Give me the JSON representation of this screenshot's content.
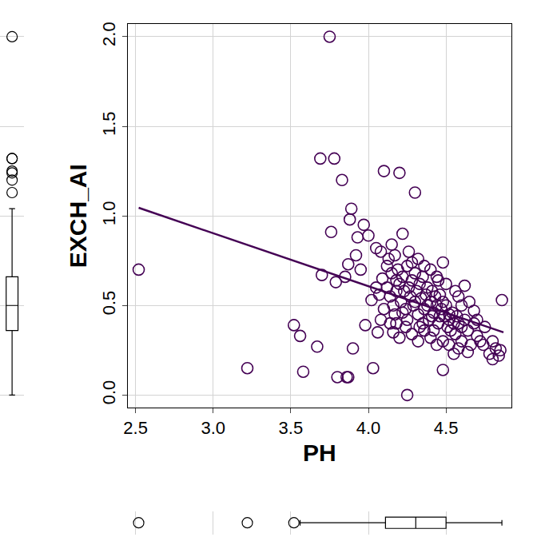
{
  "chart_data": {
    "type": "scatter",
    "x_label": "PH",
    "y_label": "EXCH_AI",
    "xlim": [
      2.45,
      4.92
    ],
    "ylim": [
      -0.07,
      2.07
    ],
    "xticks": [
      {
        "value": 2.5,
        "label": "2.5"
      },
      {
        "value": 3,
        "label": "3.0"
      },
      {
        "value": 3.5,
        "label": "3.5"
      },
      {
        "value": 4,
        "label": "4.0"
      },
      {
        "value": 4.5,
        "label": "4.5"
      }
    ],
    "yticks": [
      {
        "value": 0,
        "label": "0.0"
      },
      {
        "value": 0.5,
        "label": "0.5"
      },
      {
        "value": 1,
        "label": "1.0"
      },
      {
        "value": 1.5,
        "label": "1.5"
      },
      {
        "value": 2,
        "label": "2.0"
      }
    ],
    "grid": true,
    "series": [
      {
        "type": "scatter",
        "marker": "circle-open",
        "color": "#440154",
        "x": [
          2.52,
          3.22,
          3.52,
          3.56,
          3.58,
          3.67,
          3.69,
          3.7,
          3.75,
          3.76,
          3.78,
          3.79,
          3.8,
          3.83,
          3.85,
          3.86,
          3.87,
          3.87,
          3.88,
          3.89,
          3.9,
          3.92,
          3.93,
          3.95,
          3.97,
          3.98,
          4.0,
          4.02,
          4.03,
          4.05,
          4.07,
          4.08,
          4.1,
          4.12,
          4.15,
          4.18,
          4.2,
          4.22,
          4.25,
          4.3,
          4.26,
          4.32,
          4.4,
          4.45,
          4.48,
          4.48,
          4.55,
          4.62,
          4.65,
          4.86,
          4.85,
          4.8,
          4.78,
          4.75,
          4.72,
          4.7,
          4.68,
          4.6,
          4.58,
          4.52,
          4.12,
          4.14,
          4.15,
          4.16,
          4.17,
          4.18,
          4.19,
          4.2,
          4.21,
          4.22,
          4.23,
          4.24,
          4.25,
          4.26,
          4.27,
          4.28,
          4.29,
          4.3,
          4.31,
          4.32,
          4.33,
          4.34,
          4.35,
          4.36,
          4.37,
          4.38,
          4.39,
          4.4,
          4.41,
          4.42,
          4.43,
          4.44,
          4.45,
          4.46,
          4.47,
          4.48,
          4.49,
          4.5,
          4.51,
          4.52,
          4.53,
          4.54,
          4.55,
          4.56,
          4.57,
          4.58,
          4.6,
          4.62,
          4.64,
          4.66,
          4.68,
          4.7,
          4.14,
          4.16,
          4.2,
          4.24,
          4.28,
          4.32,
          4.36,
          4.4,
          4.44,
          4.48,
          4.35,
          4.42,
          4.25,
          4.1,
          4.08,
          4.06,
          4.05,
          4.09,
          4.13,
          4.17,
          4.28,
          4.36,
          4.44,
          4.5,
          4.56,
          4.6,
          4.38,
          4.46,
          4.3,
          4.22,
          4.18,
          4.33,
          4.41,
          4.52,
          4.58,
          4.64,
          4.74,
          4.82,
          4.84,
          4.8
        ],
        "values": [
          0.7,
          0.15,
          0.39,
          0.33,
          0.13,
          0.27,
          1.32,
          0.67,
          2.0,
          0.91,
          1.32,
          0.63,
          0.1,
          1.2,
          0.66,
          0.1,
          0.1,
          0.73,
          0.98,
          1.04,
          0.26,
          0.78,
          0.88,
          0.7,
          0.95,
          0.39,
          0.89,
          0.53,
          0.15,
          0.82,
          0.56,
          0.8,
          1.25,
          0.72,
          0.84,
          0.64,
          1.24,
          0.9,
          0.0,
          1.13,
          0.8,
          0.76,
          0.7,
          0.64,
          0.74,
          0.14,
          0.23,
          0.61,
          0.52,
          0.53,
          0.25,
          0.2,
          0.23,
          0.38,
          0.3,
          0.42,
          0.47,
          0.38,
          0.55,
          0.45,
          0.6,
          0.55,
          0.68,
          0.5,
          0.45,
          0.58,
          0.7,
          0.62,
          0.52,
          0.66,
          0.58,
          0.48,
          0.72,
          0.6,
          0.55,
          0.64,
          0.5,
          0.68,
          0.58,
          0.45,
          0.62,
          0.54,
          0.66,
          0.48,
          0.56,
          0.6,
          0.42,
          0.52,
          0.58,
          0.46,
          0.55,
          0.5,
          0.4,
          0.56,
          0.48,
          0.52,
          0.44,
          0.5,
          0.38,
          0.42,
          0.36,
          0.46,
          0.4,
          0.34,
          0.44,
          0.4,
          0.3,
          0.42,
          0.36,
          0.28,
          0.4,
          0.33,
          0.4,
          0.35,
          0.32,
          0.38,
          0.34,
          0.3,
          0.36,
          0.32,
          0.28,
          0.3,
          0.4,
          0.36,
          0.42,
          0.48,
          0.42,
          0.35,
          0.6,
          0.65,
          0.76,
          0.78,
          0.74,
          0.72,
          0.66,
          0.62,
          0.58,
          0.5,
          0.5,
          0.44,
          0.52,
          0.46,
          0.4,
          0.38,
          0.44,
          0.28,
          0.26,
          0.24,
          0.28,
          0.26,
          0.22,
          0.3
        ]
      },
      {
        "type": "line",
        "line_style": "solid",
        "color": "#440154",
        "x": [
          2.52,
          4.87
        ],
        "values": [
          1.045,
          0.35
        ]
      }
    ]
  }
}
